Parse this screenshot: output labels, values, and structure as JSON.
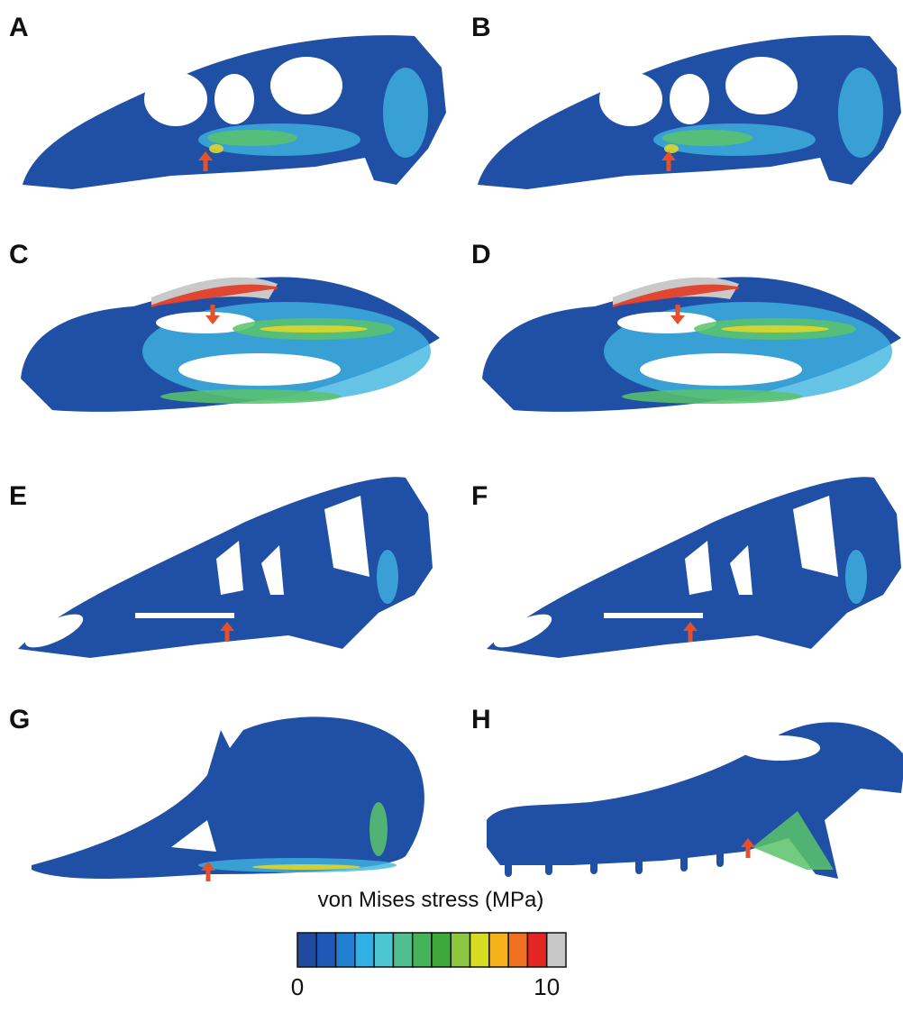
{
  "panel_labels": [
    "A",
    "B",
    "C",
    "D",
    "E",
    "F",
    "G",
    "H"
  ],
  "colorbar": {
    "title": "von Mises stress (MPa)",
    "colors": [
      "#1f4aa0",
      "#2058b8",
      "#1f7fd0",
      "#2fb0e6",
      "#4cc6d0",
      "#4fbf8f",
      "#44b35a",
      "#3ea83a",
      "#8cc63f",
      "#d6dc22",
      "#f5b21a",
      "#f07020",
      "#e32623",
      "#c8c8c8"
    ],
    "ticks": [
      0,
      10
    ]
  }
}
